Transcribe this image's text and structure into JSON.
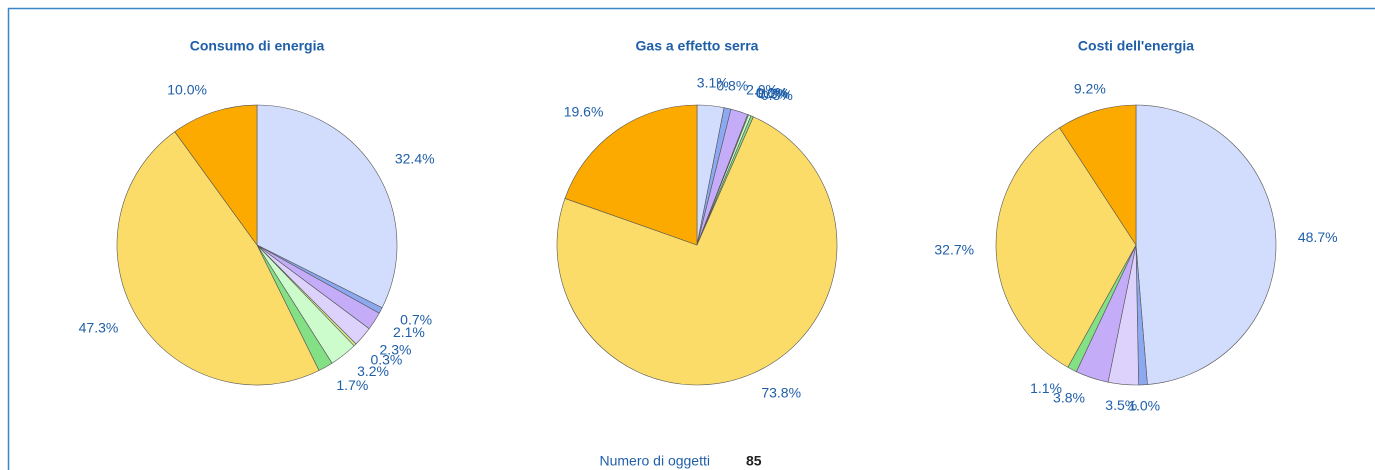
{
  "chart_data": [
    {
      "type": "pie",
      "title": "Consumo di energia",
      "values": [
        32.4,
        0.7,
        2.1,
        2.3,
        0.3,
        3.2,
        1.7,
        47.3,
        10.0
      ],
      "value_labels": [
        "32.4%",
        "0.7%",
        "2.1%",
        "2.3%",
        "0.3%",
        "3.2%",
        "1.7%",
        "47.3%",
        "10.0%"
      ],
      "colors": [
        "#d2dcfc",
        "#8ca8f0",
        "#c4acf8",
        "#dcd2fc",
        "#d8ec88",
        "#ccfccc",
        "#84e084",
        "#fcdc68",
        "#fcaa00"
      ]
    },
    {
      "type": "pie",
      "title": "Gas a effetto serra",
      "values": [
        3.1,
        0.8,
        2.0,
        0.0,
        0.1,
        0.3,
        0.3,
        73.8,
        19.6
      ],
      "value_labels": [
        "3.1%",
        "0.8%",
        "2.0%",
        "0.0%",
        "0.1%",
        "0.3%",
        "0.3%",
        "73.8%",
        "19.6%"
      ],
      "colors": [
        "#d2dcfc",
        "#8ca8f0",
        "#c4acf8",
        "#dcd2fc",
        "#d8ec88",
        "#ccfccc",
        "#84e084",
        "#fcdc68",
        "#fcaa00"
      ]
    },
    {
      "type": "pie",
      "title": "Costi dell'energia",
      "values": [
        48.7,
        1.0,
        3.5,
        3.8,
        1.1,
        32.7,
        9.2
      ],
      "value_labels": [
        "48.7%",
        "1.0%",
        "3.5%",
        "3.8%",
        "1.1%",
        "32.7%",
        "9.2%"
      ],
      "colors": [
        "#d2dcfc",
        "#8ca8f0",
        "#dcd2fc",
        "#c4acf8",
        "#84e084",
        "#fcdc68",
        "#fcaa00"
      ]
    }
  ],
  "footer": {
    "label": "Numero di oggetti",
    "value": 85
  }
}
